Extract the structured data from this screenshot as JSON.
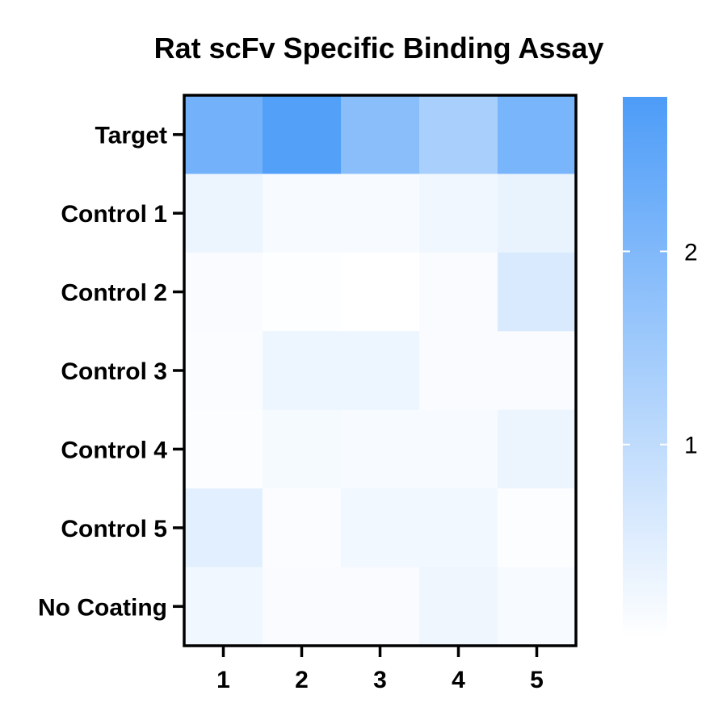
{
  "chart_data": {
    "type": "heatmap",
    "title": "Rat scFv Specific Binding Assay",
    "rows": [
      "Target",
      "Control 1",
      "Control 2",
      "Control 3",
      "Control 4",
      "Control 5",
      "No Coating"
    ],
    "columns": [
      "1",
      "2",
      "3",
      "4",
      "5"
    ],
    "values": [
      [
        2.2,
        2.7,
        1.85,
        1.35,
        2.1
      ],
      [
        0.3,
        0.12,
        0.12,
        0.22,
        0.35
      ],
      [
        0.1,
        0.03,
        0.0,
        0.1,
        0.6
      ],
      [
        0.08,
        0.28,
        0.28,
        0.1,
        0.1
      ],
      [
        0.05,
        0.15,
        0.12,
        0.12,
        0.3
      ],
      [
        0.45,
        0.08,
        0.2,
        0.2,
        0.05
      ],
      [
        0.22,
        0.1,
        0.1,
        0.25,
        0.12
      ]
    ],
    "colorbar": {
      "min": 0.0,
      "max": 2.8,
      "ticks": [
        1,
        2
      ],
      "color_low": "#ffffff",
      "color_high": "#4d9cf8"
    },
    "xlabel": "",
    "ylabel": "",
    "legend": "right"
  }
}
